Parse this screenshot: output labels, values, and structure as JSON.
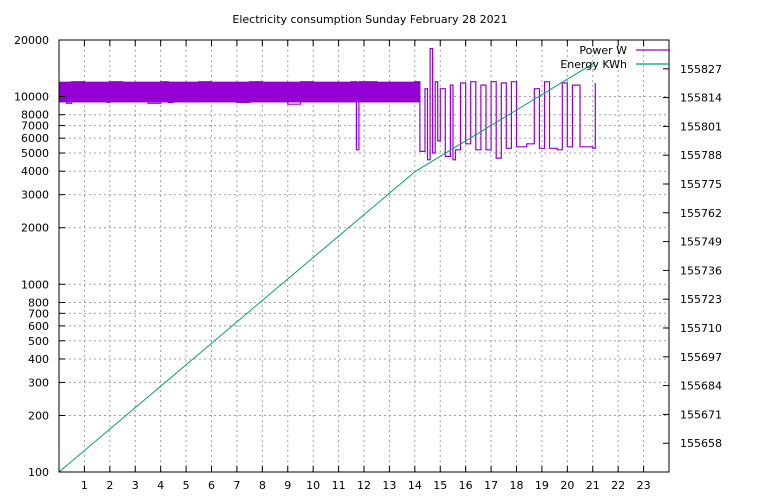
{
  "chart_data": {
    "type": "line",
    "title": "Electricity consumption Sunday February 28 2021",
    "x": {
      "range": [
        0,
        24
      ],
      "ticks": [
        1,
        2,
        3,
        4,
        5,
        6,
        7,
        8,
        9,
        10,
        11,
        12,
        13,
        14,
        15,
        16,
        17,
        18,
        19,
        20,
        21,
        22,
        23
      ],
      "tick_labels": [
        "1",
        "2",
        "3",
        "4",
        "5",
        "6",
        "7",
        "8",
        "9",
        "10",
        "11",
        "12",
        "13",
        "14",
        "15",
        "16",
        "17",
        "18",
        "19",
        "20",
        "21",
        "22",
        "23"
      ]
    },
    "y_left": {
      "scale": "log",
      "range": [
        100,
        20000
      ],
      "ticks": [
        100,
        200,
        300,
        400,
        500,
        600,
        700,
        800,
        1000,
        2000,
        3000,
        4000,
        5000,
        6000,
        7000,
        8000,
        10000,
        20000
      ],
      "tick_labels": [
        "100",
        "200",
        "300",
        "400",
        "500",
        "600",
        "700",
        "800",
        "1000",
        "2000",
        "3000",
        "4000",
        "5000",
        "6000",
        "7000",
        "8000",
        "10000",
        "20000"
      ]
    },
    "y_right": {
      "scale": "linear",
      "range": [
        155645,
        155840
      ],
      "ticks": [
        155658,
        155671,
        155684,
        155697,
        155710,
        155723,
        155736,
        155749,
        155762,
        155775,
        155788,
        155801,
        155814,
        155827
      ],
      "tick_labels": [
        "155658",
        "155671",
        "155684",
        "155697",
        "155710",
        "155723",
        "155736",
        "155749",
        "155762",
        "155775",
        "155788",
        "155801",
        "155814",
        "155827"
      ]
    },
    "grid": true,
    "legend_position": "top-right",
    "series": [
      {
        "name": "Power W",
        "color": "#9400d3",
        "axis": "y_left",
        "points": [
          [
            0,
            10500
          ],
          [
            0.3,
            9200
          ],
          [
            0.5,
            12000
          ],
          [
            1.0,
            9500
          ],
          [
            1.5,
            11500
          ],
          [
            1.9,
            9300
          ],
          [
            2.0,
            12000
          ],
          [
            2.5,
            10000
          ],
          [
            3.0,
            11800
          ],
          [
            3.5,
            9200
          ],
          [
            4.0,
            12000
          ],
          [
            4.3,
            9300
          ],
          [
            4.5,
            11800
          ],
          [
            5.0,
            9400
          ],
          [
            5.5,
            12000
          ],
          [
            6.0,
            10000
          ],
          [
            6.5,
            11800
          ],
          [
            7.0,
            9300
          ],
          [
            7.5,
            12000
          ],
          [
            8.0,
            9500
          ],
          [
            8.5,
            11800
          ],
          [
            9.0,
            9100
          ],
          [
            9.5,
            12000
          ],
          [
            10.0,
            10000
          ],
          [
            10.5,
            11800
          ],
          [
            11.0,
            9400
          ],
          [
            11.5,
            12000
          ],
          [
            11.7,
            5200
          ],
          [
            11.8,
            12000
          ],
          [
            12.5,
            10000
          ],
          [
            13.0,
            11800
          ],
          [
            13.5,
            9500
          ],
          [
            14.0,
            12000
          ],
          [
            14.2,
            5100
          ],
          [
            14.4,
            11000
          ],
          [
            14.5,
            4600
          ],
          [
            14.6,
            18000
          ],
          [
            14.7,
            5000
          ],
          [
            14.8,
            12000
          ],
          [
            14.9,
            5800
          ],
          [
            15.0,
            11000
          ],
          [
            15.2,
            4800
          ],
          [
            15.4,
            11500
          ],
          [
            15.5,
            4600
          ],
          [
            15.6,
            5200
          ],
          [
            15.8,
            11800
          ],
          [
            16.0,
            5600
          ],
          [
            16.2,
            12000
          ],
          [
            16.4,
            5200
          ],
          [
            16.6,
            11500
          ],
          [
            16.8,
            5200
          ],
          [
            17.0,
            12000
          ],
          [
            17.2,
            4700
          ],
          [
            17.4,
            11800
          ],
          [
            17.6,
            5300
          ],
          [
            17.8,
            12000
          ],
          [
            18.0,
            5400
          ],
          [
            18.4,
            5600
          ],
          [
            18.7,
            11000
          ],
          [
            18.9,
            5300
          ],
          [
            19.1,
            12000
          ],
          [
            19.3,
            5300
          ],
          [
            19.6,
            5200
          ],
          [
            19.8,
            11800
          ],
          [
            20.0,
            5400
          ],
          [
            20.2,
            11500
          ],
          [
            20.5,
            5400
          ],
          [
            21.0,
            5300
          ],
          [
            21.1,
            11800
          ]
        ]
      },
      {
        "name": "Energy KWh",
        "color": "#009e73",
        "axis": "y_right",
        "points": [
          [
            0,
            155645
          ],
          [
            14.0,
            155780.5
          ],
          [
            21.1,
            155830
          ]
        ]
      }
    ]
  }
}
